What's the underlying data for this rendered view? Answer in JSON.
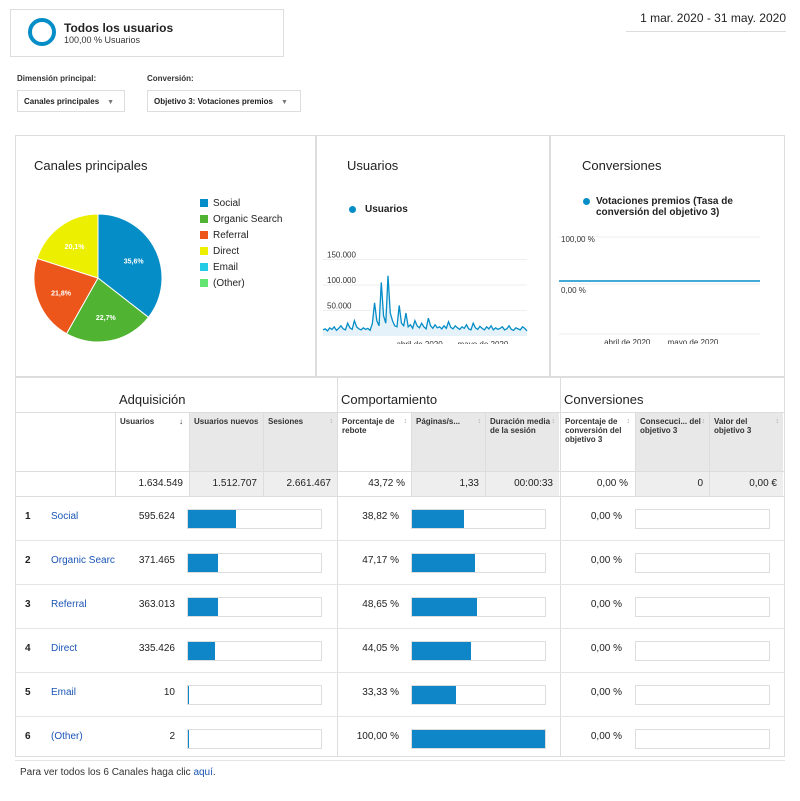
{
  "segment": {
    "name": "Todos los usuarios",
    "sub": "100,00 % Usuarios"
  },
  "date_range": "1 mar. 2020 - 31 may. 2020",
  "primary_dimension": {
    "label": "Dimensión principal:",
    "value": "Canales principales"
  },
  "conversion": {
    "label": "Conversión:",
    "value": "Objetivo 3: Votaciones premios"
  },
  "pie": {
    "title": "Canales principales",
    "legend": [
      {
        "name": "Social",
        "color": "#058dc7"
      },
      {
        "name": "Organic Search",
        "color": "#50b432"
      },
      {
        "name": "Referral",
        "color": "#ed561b"
      },
      {
        "name": "Direct",
        "color": "#edef00"
      },
      {
        "name": "Email",
        "color": "#24cbe5"
      },
      {
        "name": "(Other)",
        "color": "#64e572"
      }
    ]
  },
  "users_chart": {
    "title": "Usuarios",
    "legend": "Usuarios",
    "ticks": [
      "150.000",
      "100.000",
      "50.000"
    ],
    "xlabels": [
      "abril de 2020",
      "mayo de 2020"
    ]
  },
  "conv_chart": {
    "title": "Conversiones",
    "legend": "Votaciones premios (Tasa de conversión del objetivo 3)",
    "ticks": [
      "100,00 %",
      "0,00 %"
    ],
    "xlabels": [
      "abril de 2020",
      "mayo de 2020"
    ]
  },
  "chart_data": [
    {
      "type": "pie",
      "title": "Canales principales",
      "categories": [
        "Social",
        "Organic Search",
        "Referral",
        "Direct",
        "Email",
        "(Other)"
      ],
      "values": [
        35.6,
        22.7,
        21.8,
        20.1,
        0,
        0
      ],
      "labels": [
        "35,6%",
        "22,7%",
        "21,8%",
        "20,1%",
        "",
        ""
      ]
    },
    {
      "type": "area",
      "title": "Usuarios",
      "series": [
        {
          "name": "Usuarios",
          "values": [
            12000,
            14000,
            10000,
            16000,
            13000,
            18000,
            11000,
            15000,
            20000,
            14000,
            12000,
            25000,
            16000,
            13000,
            30000,
            18000,
            14000,
            12000,
            16000,
            13000,
            15000,
            11000,
            24000,
            65000,
            30000,
            20000,
            105000,
            40000,
            25000,
            118000,
            45000,
            30000,
            20000,
            18000,
            60000,
            25000,
            20000,
            45000,
            18000,
            22000,
            15000,
            30000,
            20000,
            16000,
            25000,
            18000,
            14000,
            35000,
            20000,
            15000,
            22000,
            16000,
            18000,
            14000,
            20000,
            15000,
            28000,
            17000,
            14000,
            20000,
            16000,
            13000,
            18000,
            15000,
            22000,
            14000,
            12000,
            25000,
            16000,
            13000,
            19000,
            15000,
            12000,
            18000,
            14000,
            20000,
            12000,
            16000,
            13000,
            15000,
            18000,
            12000,
            14000,
            20000,
            13000,
            11000,
            16000,
            14000,
            12000,
            18000,
            15000,
            10000
          ]
        }
      ],
      "ylim": [
        0,
        150000
      ]
    },
    {
      "type": "line",
      "title": "Conversiones",
      "series": [
        {
          "name": "Votaciones premios (Tasa de conversión del objetivo 3)",
          "values": [
            0,
            0
          ]
        }
      ],
      "ylim": [
        0,
        100
      ]
    }
  ],
  "table": {
    "groups": [
      "Adquisición",
      "Comportamiento",
      "Conversiones"
    ],
    "headers": [
      "Usuarios",
      "Usuarios nuevos",
      "Sesiones",
      "Porcentaje de rebote",
      "Páginas/s...",
      "Duración media de la sesión",
      "Porcentaje de conversión del objetivo 3",
      "Consecuci... del objetivo 3",
      "Valor del objetivo 3"
    ],
    "sort_arrow": "↓",
    "totals": [
      "1.634.549",
      "1.512.707",
      "2.661.467",
      "43,72 %",
      "1,33",
      "00:00:33",
      "0,00 %",
      "0",
      "0,00 €"
    ],
    "rows": [
      {
        "num": "1",
        "name": "Social",
        "users": "595.624",
        "users_frac": 0.36,
        "bounce": "38,82 %",
        "bounce_frac": 0.388,
        "conv": "0,00 %"
      },
      {
        "num": "2",
        "name": "Organic Search",
        "users": "371.465",
        "users_frac": 0.227,
        "bounce": "47,17 %",
        "bounce_frac": 0.472,
        "conv": "0,00 %"
      },
      {
        "num": "3",
        "name": "Referral",
        "users": "363.013",
        "users_frac": 0.222,
        "bounce": "48,65 %",
        "bounce_frac": 0.487,
        "conv": "0,00 %"
      },
      {
        "num": "4",
        "name": "Direct",
        "users": "335.426",
        "users_frac": 0.205,
        "bounce": "44,05 %",
        "bounce_frac": 0.44,
        "conv": "0,00 %"
      },
      {
        "num": "5",
        "name": "Email",
        "users": "10",
        "users_frac": 0.002,
        "bounce": "33,33 %",
        "bounce_frac": 0.333,
        "conv": "0,00 %"
      },
      {
        "num": "6",
        "name": "(Other)",
        "users": "2",
        "users_frac": 0.002,
        "bounce": "100,00 %",
        "bounce_frac": 1.0,
        "conv": "0,00 %"
      }
    ]
  },
  "footer": {
    "text": "Para ver todos los 6 Canales haga clic ",
    "link": "aquí",
    "end": "."
  }
}
